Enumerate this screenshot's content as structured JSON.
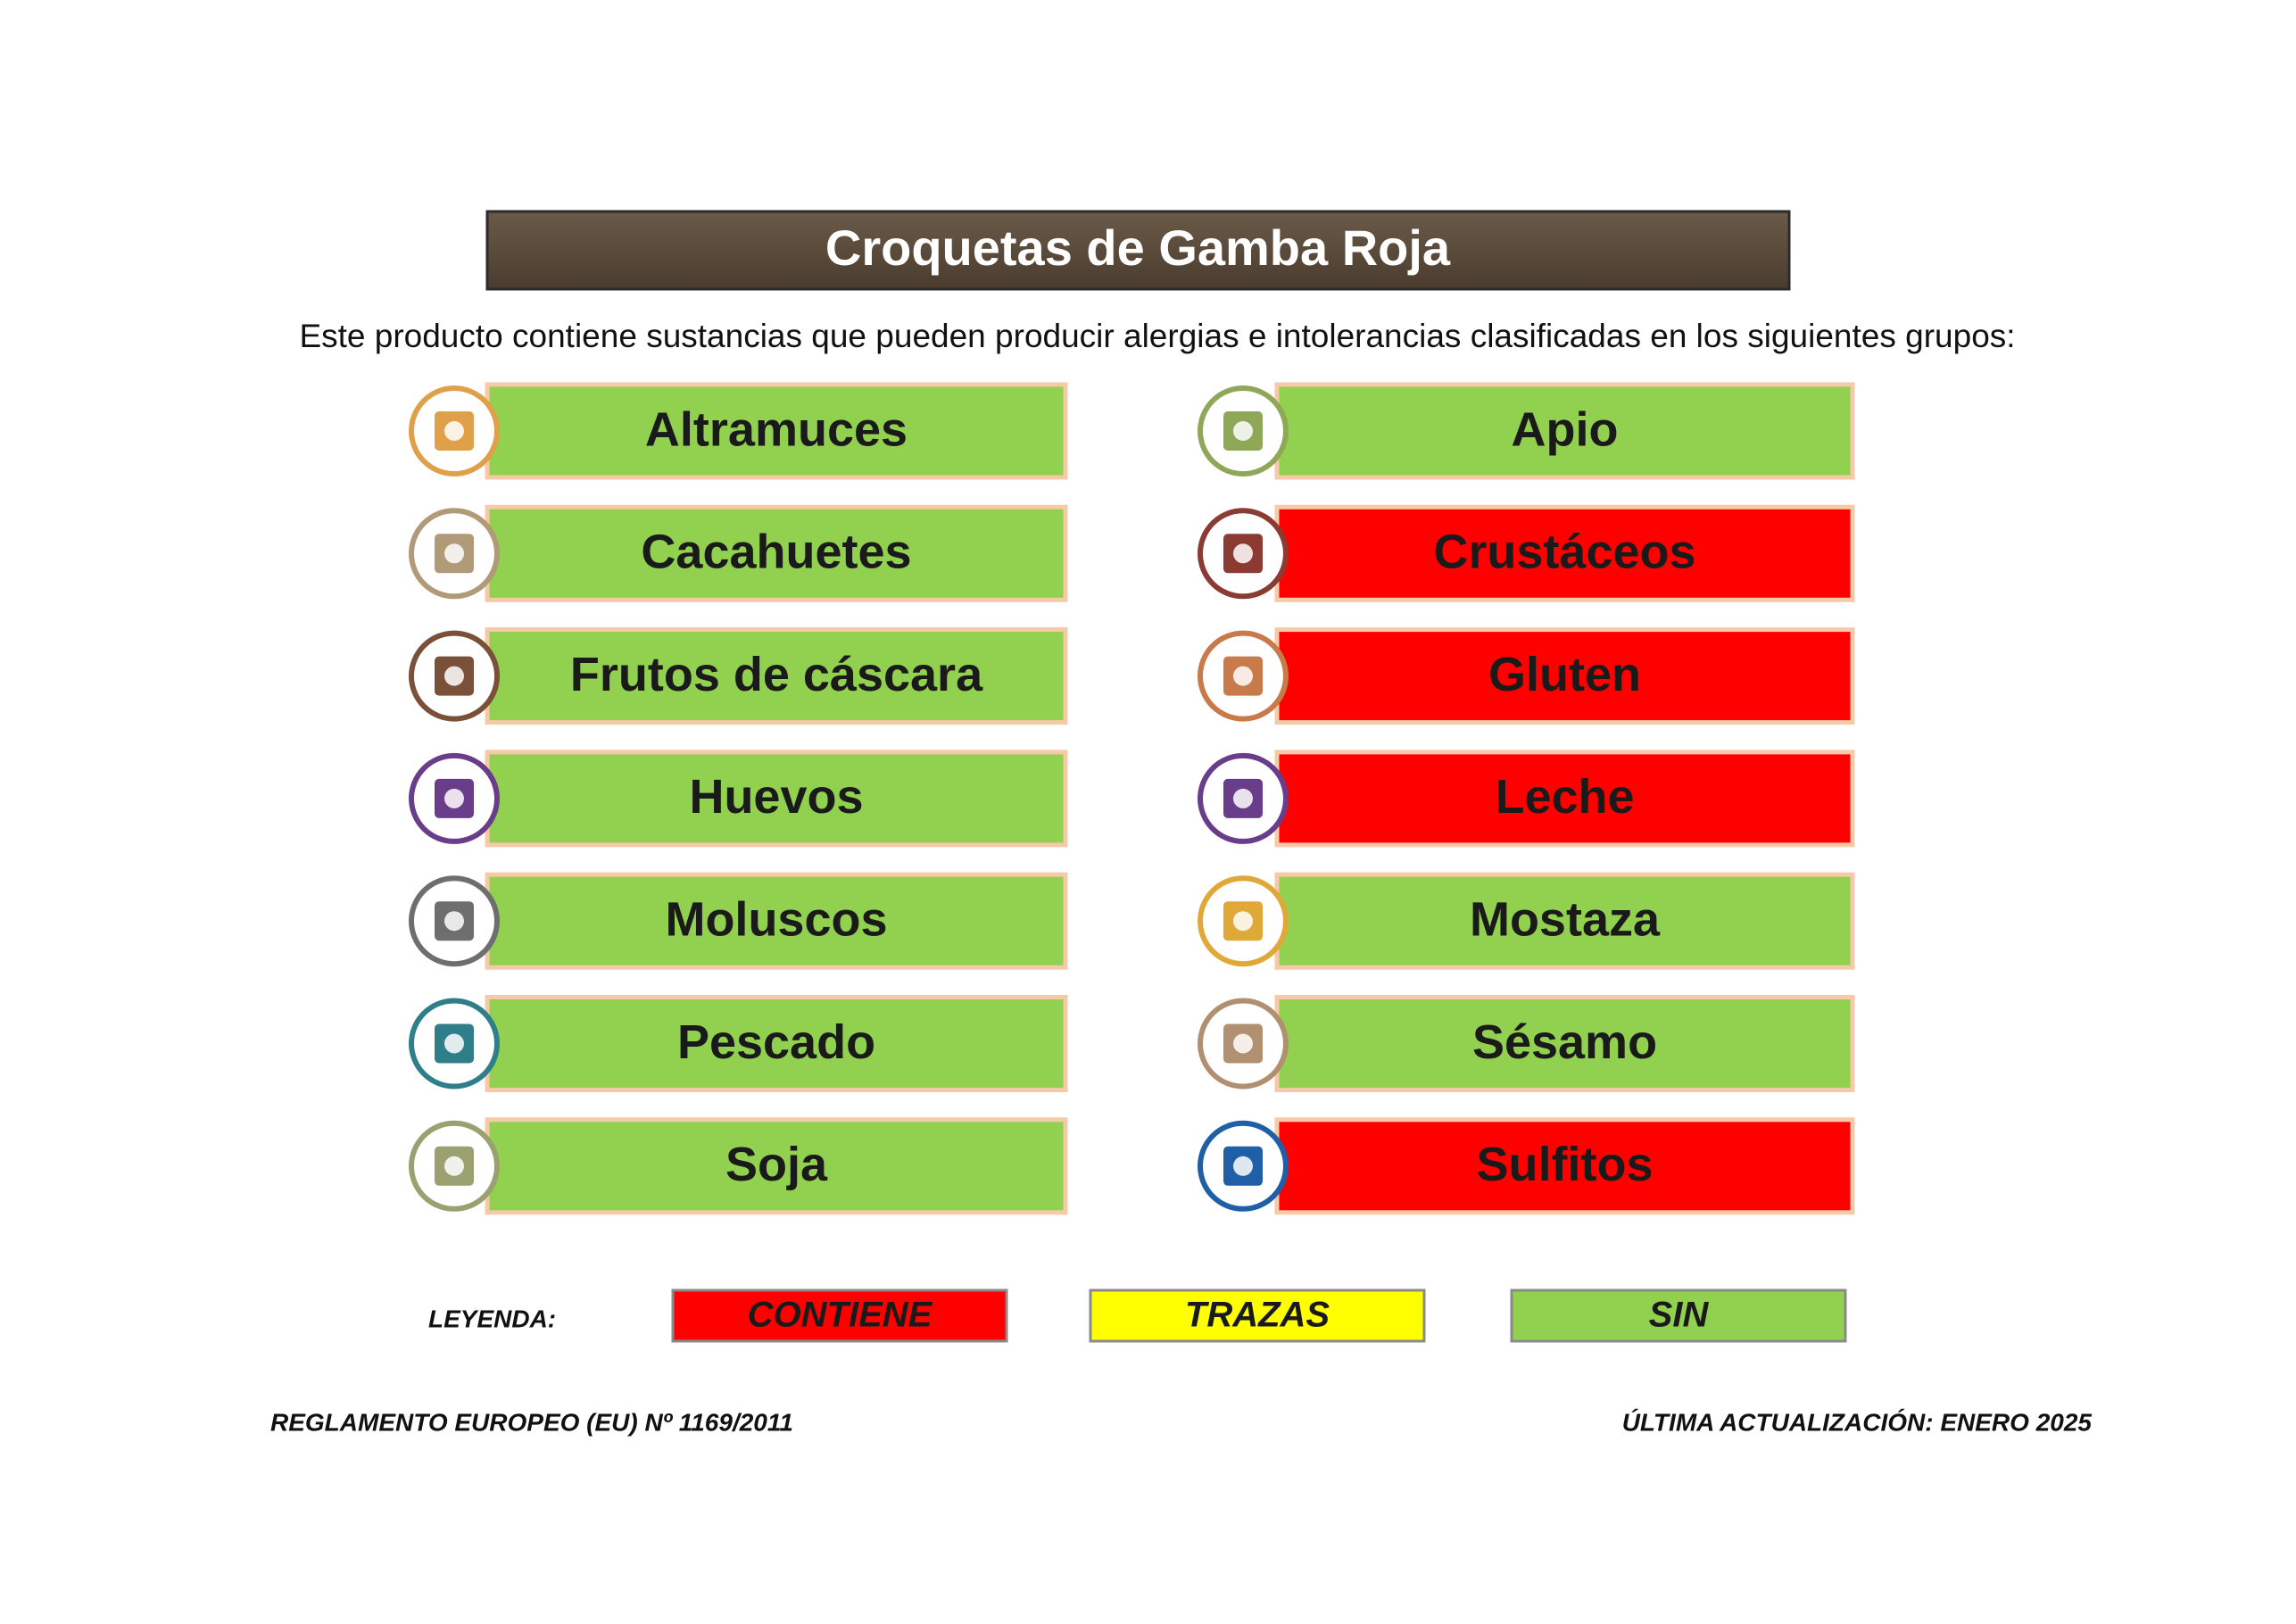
{
  "header": {
    "title": "Croquetas de Gamba Roja",
    "intro": "Este producto contiene sustancias que pueden producir alergias e intolerancias clasificadas en los siguientes grupos:"
  },
  "columns": [
    [
      {
        "label": "Altramuces",
        "color": "#92d050",
        "icon_color": "#e0a04a"
      },
      {
        "label": "Cacahuetes",
        "color": "#92d050",
        "icon_color": "#b09a78"
      },
      {
        "label": "Frutos de cáscara",
        "color": "#92d050",
        "icon_color": "#7a5038"
      },
      {
        "label": "Huevos",
        "color": "#92d050",
        "icon_color": "#6a3d8a"
      },
      {
        "label": "Moluscos",
        "color": "#92d050",
        "icon_color": "#6e6e6e"
      },
      {
        "label": "Pescado",
        "color": "#92d050",
        "icon_color": "#2e7f8a"
      },
      {
        "label": "Soja",
        "color": "#92d050",
        "icon_color": "#9aa070"
      }
    ],
    [
      {
        "label": "Apio",
        "color": "#92d050",
        "icon_color": "#8fa858"
      },
      {
        "label": "Crustáceos",
        "color": "#ff0000",
        "icon_color": "#8b3b32"
      },
      {
        "label": "Gluten",
        "color": "#ff0000",
        "icon_color": "#c87a4a"
      },
      {
        "label": "Leche",
        "color": "#ff0000",
        "icon_color": "#6a3d8a"
      },
      {
        "label": "Mostaza",
        "color": "#92d050",
        "icon_color": "#e0a838"
      },
      {
        "label": "Sésamo",
        "color": "#92d050",
        "icon_color": "#b09070"
      },
      {
        "label": "Sulfitos",
        "color": "#ff0000",
        "icon_color": "#1f5fa8"
      }
    ]
  ],
  "legend": {
    "label": "LEYENDA:",
    "items": [
      {
        "label": "CONTIENE",
        "color": "#ff0000"
      },
      {
        "label": "TRAZAS",
        "color": "#ffff00"
      },
      {
        "label": "SIN",
        "color": "#92d050"
      }
    ]
  },
  "footer": {
    "left": "REGLAMENTO EUROPEO (EU) Nº 1169/2011",
    "right": "ÚLTIMA ACTUALIZACIÓN: ENERO 2025"
  }
}
